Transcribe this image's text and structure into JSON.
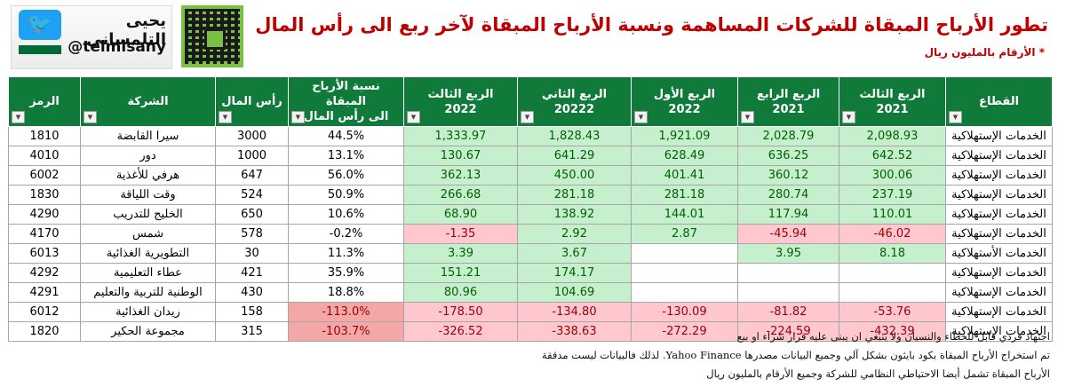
{
  "brand": {
    "name_ar": "يحيى التلمساني",
    "handle": "@telmisany",
    "twitter_icon": "twitter-bird-icon",
    "qr_icon": "qr-code-icon"
  },
  "title": "تطور الأرباح المبقاة للشركات المساهمة ونسبة الأرباح المبقاة لآخر ربع الى رأس المال",
  "subtitle": "* الأرقام بالمليون ريال",
  "colors": {
    "header_green": "#0f7a3a",
    "title_red": "#c00000",
    "positive_fill": "#c6efce",
    "negative_fill": "#ffc7ce"
  },
  "table": {
    "headers": {
      "sector": "القطاع",
      "q3_2021": [
        "الربع الثالث",
        "2021"
      ],
      "q4_2021": [
        "الربع الرابع",
        "2021"
      ],
      "q1_2022": [
        "الربع الأول",
        "2022"
      ],
      "q2_2022": [
        "الربع الثاني",
        "20222"
      ],
      "q3_2022": [
        "الربع الثالث",
        "2022"
      ],
      "ratio": [
        "نسبة الأرباح المبقاة",
        "الى رأس المال"
      ],
      "capital": "رأس المال",
      "company": "الشركة",
      "symbol": "الرمز"
    },
    "rows": [
      {
        "sector": "الخدمات الإستهلاكية",
        "q3_2021": "2,098.93",
        "q4_2021": "2,028.79",
        "q1_2022": "1,921.09",
        "q2_2022": "1,828.43",
        "q3_2022": "1,333.97",
        "ratio": "44.5%",
        "capital": "3000",
        "company": "سيرا القابضة",
        "symbol": "1810"
      },
      {
        "sector": "الخدمات الإستهلاكية",
        "q3_2021": "642.52",
        "q4_2021": "636.25",
        "q1_2022": "628.49",
        "q2_2022": "641.29",
        "q3_2022": "130.67",
        "ratio": "13.1%",
        "capital": "1000",
        "company": "دور",
        "symbol": "4010"
      },
      {
        "sector": "الخدمات الإستهلاكية",
        "q3_2021": "300.06",
        "q4_2021": "360.12",
        "q1_2022": "401.41",
        "q2_2022": "450.00",
        "q3_2022": "362.13",
        "ratio": "56.0%",
        "capital": "647",
        "company": "هرفي للأغذية",
        "symbol": "6002"
      },
      {
        "sector": "الخدمات الإستهلاكية",
        "q3_2021": "237.19",
        "q4_2021": "280.74",
        "q1_2022": "281.18",
        "q2_2022": "281.18",
        "q3_2022": "266.68",
        "ratio": "50.9%",
        "capital": "524",
        "company": "وقت اللياقة",
        "symbol": "1830"
      },
      {
        "sector": "الخدمات الإستهلاكية",
        "q3_2021": "110.01",
        "q4_2021": "117.94",
        "q1_2022": "144.01",
        "q2_2022": "138.92",
        "q3_2022": "68.90",
        "ratio": "10.6%",
        "capital": "650",
        "company": "الخليج للتدريب",
        "symbol": "4290"
      },
      {
        "sector": "الخدمات الإستهلاكية",
        "q3_2021": "-46.02",
        "q4_2021": "-45.94",
        "q1_2022": "2.87",
        "q2_2022": "2.92",
        "q3_2022": "-1.35",
        "ratio": "-0.2%",
        "capital": "578",
        "company": "شمس",
        "symbol": "4170"
      },
      {
        "sector": "الخدمات الأستهلاكية",
        "q3_2021": "8.18",
        "q4_2021": "3.95",
        "q1_2022": "",
        "q2_2022": "3.67",
        "q3_2022": "3.39",
        "ratio": "11.3%",
        "capital": "30",
        "company": "التطويرية الغذائية",
        "symbol": "6013"
      },
      {
        "sector": "الخدمات الإستهلاكية",
        "q3_2021": "",
        "q4_2021": "",
        "q1_2022": "",
        "q2_2022": "174.17",
        "q3_2022": "151.21",
        "ratio": "35.9%",
        "capital": "421",
        "company": "عطاء التعليمية",
        "symbol": "4292"
      },
      {
        "sector": "الخدمات الإستهلاكية",
        "q3_2021": "",
        "q4_2021": "",
        "q1_2022": "",
        "q2_2022": "104.69",
        "q3_2022": "80.96",
        "ratio": "18.8%",
        "capital": "430",
        "company": "الوطنية للتربية والتعليم",
        "symbol": "4291"
      },
      {
        "sector": "الخدمات الإستهلاكية",
        "q3_2021": "-53.76",
        "q4_2021": "-81.82",
        "q1_2022": "-130.09",
        "q2_2022": "-134.80",
        "q3_2022": "-178.50",
        "ratio": "-113.0%",
        "capital": "158",
        "company": "ريدان الغذائية",
        "symbol": "6012"
      },
      {
        "sector": "الخدمات الإستهلاكية",
        "q3_2021": "-432.39",
        "q4_2021": "-224.59",
        "q1_2022": "-272.29",
        "q2_2022": "-338.63",
        "q3_2022": "-326.52",
        "ratio": "-103.7%",
        "capital": "315",
        "company": "مجموعة الحكير",
        "symbol": "1820"
      }
    ]
  },
  "footer": [
    "اجتهاد فردي قابل للخطاء والنسيان ولا ينبغي ان يبنى عليه قرار شراء او بيع",
    "تم استخراج الأرباح المبقاة بكود بايثون بشكل آلي وجميع البيانات مصدرها Yahoo Finance. لذلك فالبيانات ليست مدققة",
    "الأرباح المبقاة تشمل أيضا الاحتياطي النظامي للشركة وجميع الأرقام بالمليون ريال"
  ]
}
